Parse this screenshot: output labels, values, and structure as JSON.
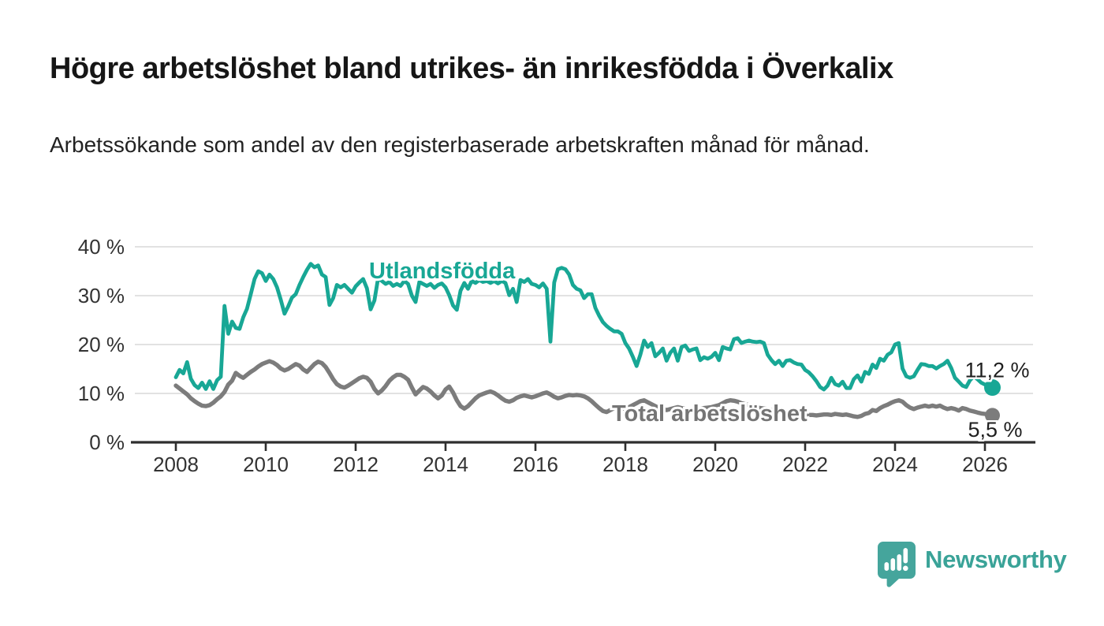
{
  "title": "Högre arbetslöshet bland utrikes- än inrikesfödda i Överkalix",
  "subtitle": "Arbetssökande som andel av den registerbaserade arbetskraften månad för månad.",
  "footer": {
    "brand": "Newsworthy",
    "logo_icon": "newsworthy-speech-bubble-bar-chart-icon"
  },
  "colors": {
    "accent_teal": "#18a795",
    "line_gray": "#7c7c7c",
    "label_gray": "#757575",
    "grid": "#d9d9d9",
    "axis": "#2e2e2e",
    "text_dark": "#1f1f1f",
    "tick_text": "#333333",
    "logo_teal": "#45a59c"
  },
  "chart_data": {
    "type": "line",
    "title": "Högre arbetslöshet bland utrikes- än inrikesfödda i Överkalix",
    "xlabel": "",
    "ylabel": "Arbetssökande som andel av den registerbaserade arbetskraften",
    "unit": "%",
    "grid": true,
    "legend_position": "inline-labels",
    "x_axis": {
      "ticks": [
        2008,
        2010,
        2012,
        2014,
        2016,
        2018,
        2020,
        2022,
        2024,
        2026
      ],
      "tick_labels": [
        "2008",
        "2010",
        "2012",
        "2014",
        "2016",
        "2018",
        "2020",
        "2022",
        "2024",
        "2026"
      ],
      "range_years": [
        2007.1,
        2027.1
      ]
    },
    "y_axis": {
      "tick_values": [
        0,
        10,
        20,
        30,
        40
      ],
      "tick_labels": [
        "0 %",
        "10 %",
        "20 %",
        "30 %",
        "40 %"
      ],
      "ylim": [
        0,
        43
      ]
    },
    "series": [
      {
        "name": "Utlandsfödda",
        "color": "#18a795",
        "end_label": "11,2 %",
        "end_value": 11.2,
        "start_year": 2008,
        "step_months": 1,
        "values": [
          13.3,
          14.8,
          14.1,
          16.4,
          13.0,
          11.7,
          11.1,
          12.2,
          10.9,
          12.5,
          10.9,
          12.7,
          13.4,
          27.9,
          22.2,
          24.7,
          23.4,
          23.2,
          25.6,
          27.3,
          30.3,
          33.4,
          35.0,
          34.6,
          33.0,
          34.3,
          33.4,
          31.7,
          29.2,
          26.3,
          27.8,
          29.6,
          30.3,
          32.2,
          33.8,
          35.3,
          36.5,
          35.8,
          36.2,
          34.3,
          33.8,
          28.1,
          29.5,
          32.2,
          31.7,
          32.2,
          31.4,
          30.6,
          31.9,
          32.7,
          33.4,
          31.5,
          27.2,
          29.0,
          33.6,
          33.0,
          32.4,
          32.8,
          32.0,
          32.4,
          32.0,
          33.0,
          32.4,
          30.0,
          28.7,
          32.8,
          32.4,
          32.0,
          32.4,
          31.6,
          32.2,
          32.5,
          31.7,
          30.1,
          28.0,
          27.1,
          31.0,
          32.6,
          31.4,
          33.0,
          32.6,
          33.2,
          32.8,
          33.0,
          32.6,
          33.0,
          32.5,
          33.0,
          32.6,
          30.1,
          31.4,
          28.7,
          33.2,
          32.8,
          33.4,
          32.4,
          32.2,
          31.7,
          32.5,
          31.4,
          20.6,
          32.7,
          35.4,
          35.7,
          35.4,
          34.3,
          32.2,
          31.4,
          31.1,
          29.5,
          30.3,
          30.3,
          27.5,
          25.9,
          24.6,
          23.8,
          23.2,
          22.7,
          22.7,
          22.2,
          20.3,
          19.2,
          17.5,
          15.6,
          17.9,
          20.8,
          19.5,
          20.3,
          17.6,
          18.3,
          19.2,
          16.7,
          18.3,
          19.2,
          16.7,
          19.5,
          19.8,
          18.7,
          19.0,
          19.2,
          16.8,
          17.4,
          17.1,
          17.5,
          18.3,
          16.8,
          19.5,
          19.2,
          19.0,
          21.1,
          21.3,
          20.3,
          20.6,
          20.8,
          20.6,
          20.5,
          20.6,
          20.3,
          17.9,
          16.8,
          16.0,
          16.7,
          15.6,
          16.7,
          16.8,
          16.3,
          16.0,
          15.9,
          14.8,
          14.3,
          13.5,
          12.5,
          11.3,
          10.8,
          11.6,
          13.2,
          11.9,
          11.6,
          12.4,
          11.1,
          11.1,
          12.9,
          13.7,
          12.4,
          14.4,
          14.0,
          15.9,
          15.2,
          17.1,
          16.7,
          17.9,
          18.4,
          20.0,
          20.3,
          15.1,
          13.5,
          13.2,
          13.5,
          14.8,
          16.0,
          15.9,
          15.6,
          15.6,
          15.1,
          15.6,
          16.0,
          16.7,
          15.2,
          13.2,
          12.4,
          11.6,
          11.3,
          12.7,
          13.5,
          12.9,
          12.2,
          11.8,
          11.5,
          11.2
        ]
      },
      {
        "name": "Total arbetslöshet",
        "color": "#7c7c7c",
        "end_label": "5,5 %",
        "end_value": 5.5,
        "start_year": 2008,
        "step_months": 1,
        "values": [
          11.6,
          11.0,
          10.4,
          9.8,
          9.0,
          8.4,
          7.9,
          7.5,
          7.4,
          7.6,
          8.1,
          8.8,
          9.4,
          10.3,
          11.8,
          12.6,
          14.2,
          13.6,
          13.2,
          13.8,
          14.4,
          14.9,
          15.5,
          16.0,
          16.3,
          16.6,
          16.3,
          15.8,
          15.1,
          14.7,
          15.0,
          15.5,
          16.0,
          15.7,
          14.9,
          14.4,
          15.2,
          16.0,
          16.5,
          16.2,
          15.4,
          14.2,
          12.9,
          11.9,
          11.4,
          11.2,
          11.6,
          12.1,
          12.6,
          13.1,
          13.4,
          13.2,
          12.4,
          10.9,
          10.0,
          10.6,
          11.5,
          12.6,
          13.3,
          13.8,
          13.8,
          13.4,
          12.8,
          11.2,
          9.8,
          10.6,
          11.3,
          11.0,
          10.4,
          9.6,
          9.0,
          9.6,
          10.8,
          11.4,
          10.2,
          8.6,
          7.4,
          6.9,
          7.4,
          8.2,
          9.0,
          9.6,
          9.9,
          10.2,
          10.4,
          10.1,
          9.6,
          9.0,
          8.5,
          8.3,
          8.6,
          9.1,
          9.4,
          9.6,
          9.4,
          9.2,
          9.4,
          9.7,
          10.0,
          10.2,
          9.8,
          9.3,
          9.0,
          9.2,
          9.5,
          9.7,
          9.6,
          9.7,
          9.6,
          9.4,
          9.0,
          8.4,
          7.7,
          7.0,
          6.4,
          6.2,
          6.6,
          7.0,
          7.3,
          7.0,
          6.8,
          7.2,
          7.6,
          8.0,
          8.4,
          8.6,
          8.2,
          7.8,
          7.4,
          7.0,
          6.8,
          6.6,
          6.8,
          7.0,
          7.2,
          7.0,
          6.8,
          6.6,
          6.5,
          6.6,
          6.8,
          7.0,
          7.1,
          7.2,
          7.4,
          7.6,
          8.0,
          8.4,
          8.6,
          8.5,
          8.3,
          8.0,
          7.8,
          7.6,
          7.4,
          7.2,
          7.0,
          6.9,
          6.8,
          6.6,
          6.4,
          6.2,
          6.0,
          5.9,
          5.8,
          5.8,
          5.7,
          5.7,
          5.7,
          5.6,
          5.6,
          5.5,
          5.6,
          5.7,
          5.7,
          5.6,
          5.8,
          5.7,
          5.6,
          5.7,
          5.5,
          5.3,
          5.2,
          5.4,
          5.8,
          6.0,
          6.6,
          6.4,
          7.0,
          7.4,
          7.7,
          8.1,
          8.4,
          8.6,
          8.3,
          7.6,
          7.1,
          6.8,
          7.1,
          7.3,
          7.5,
          7.3,
          7.5,
          7.3,
          7.5,
          7.1,
          6.8,
          7.0,
          6.8,
          6.5,
          7.0,
          6.8,
          6.5,
          6.3,
          6.1,
          5.9,
          5.8,
          5.6,
          5.5
        ]
      }
    ]
  }
}
